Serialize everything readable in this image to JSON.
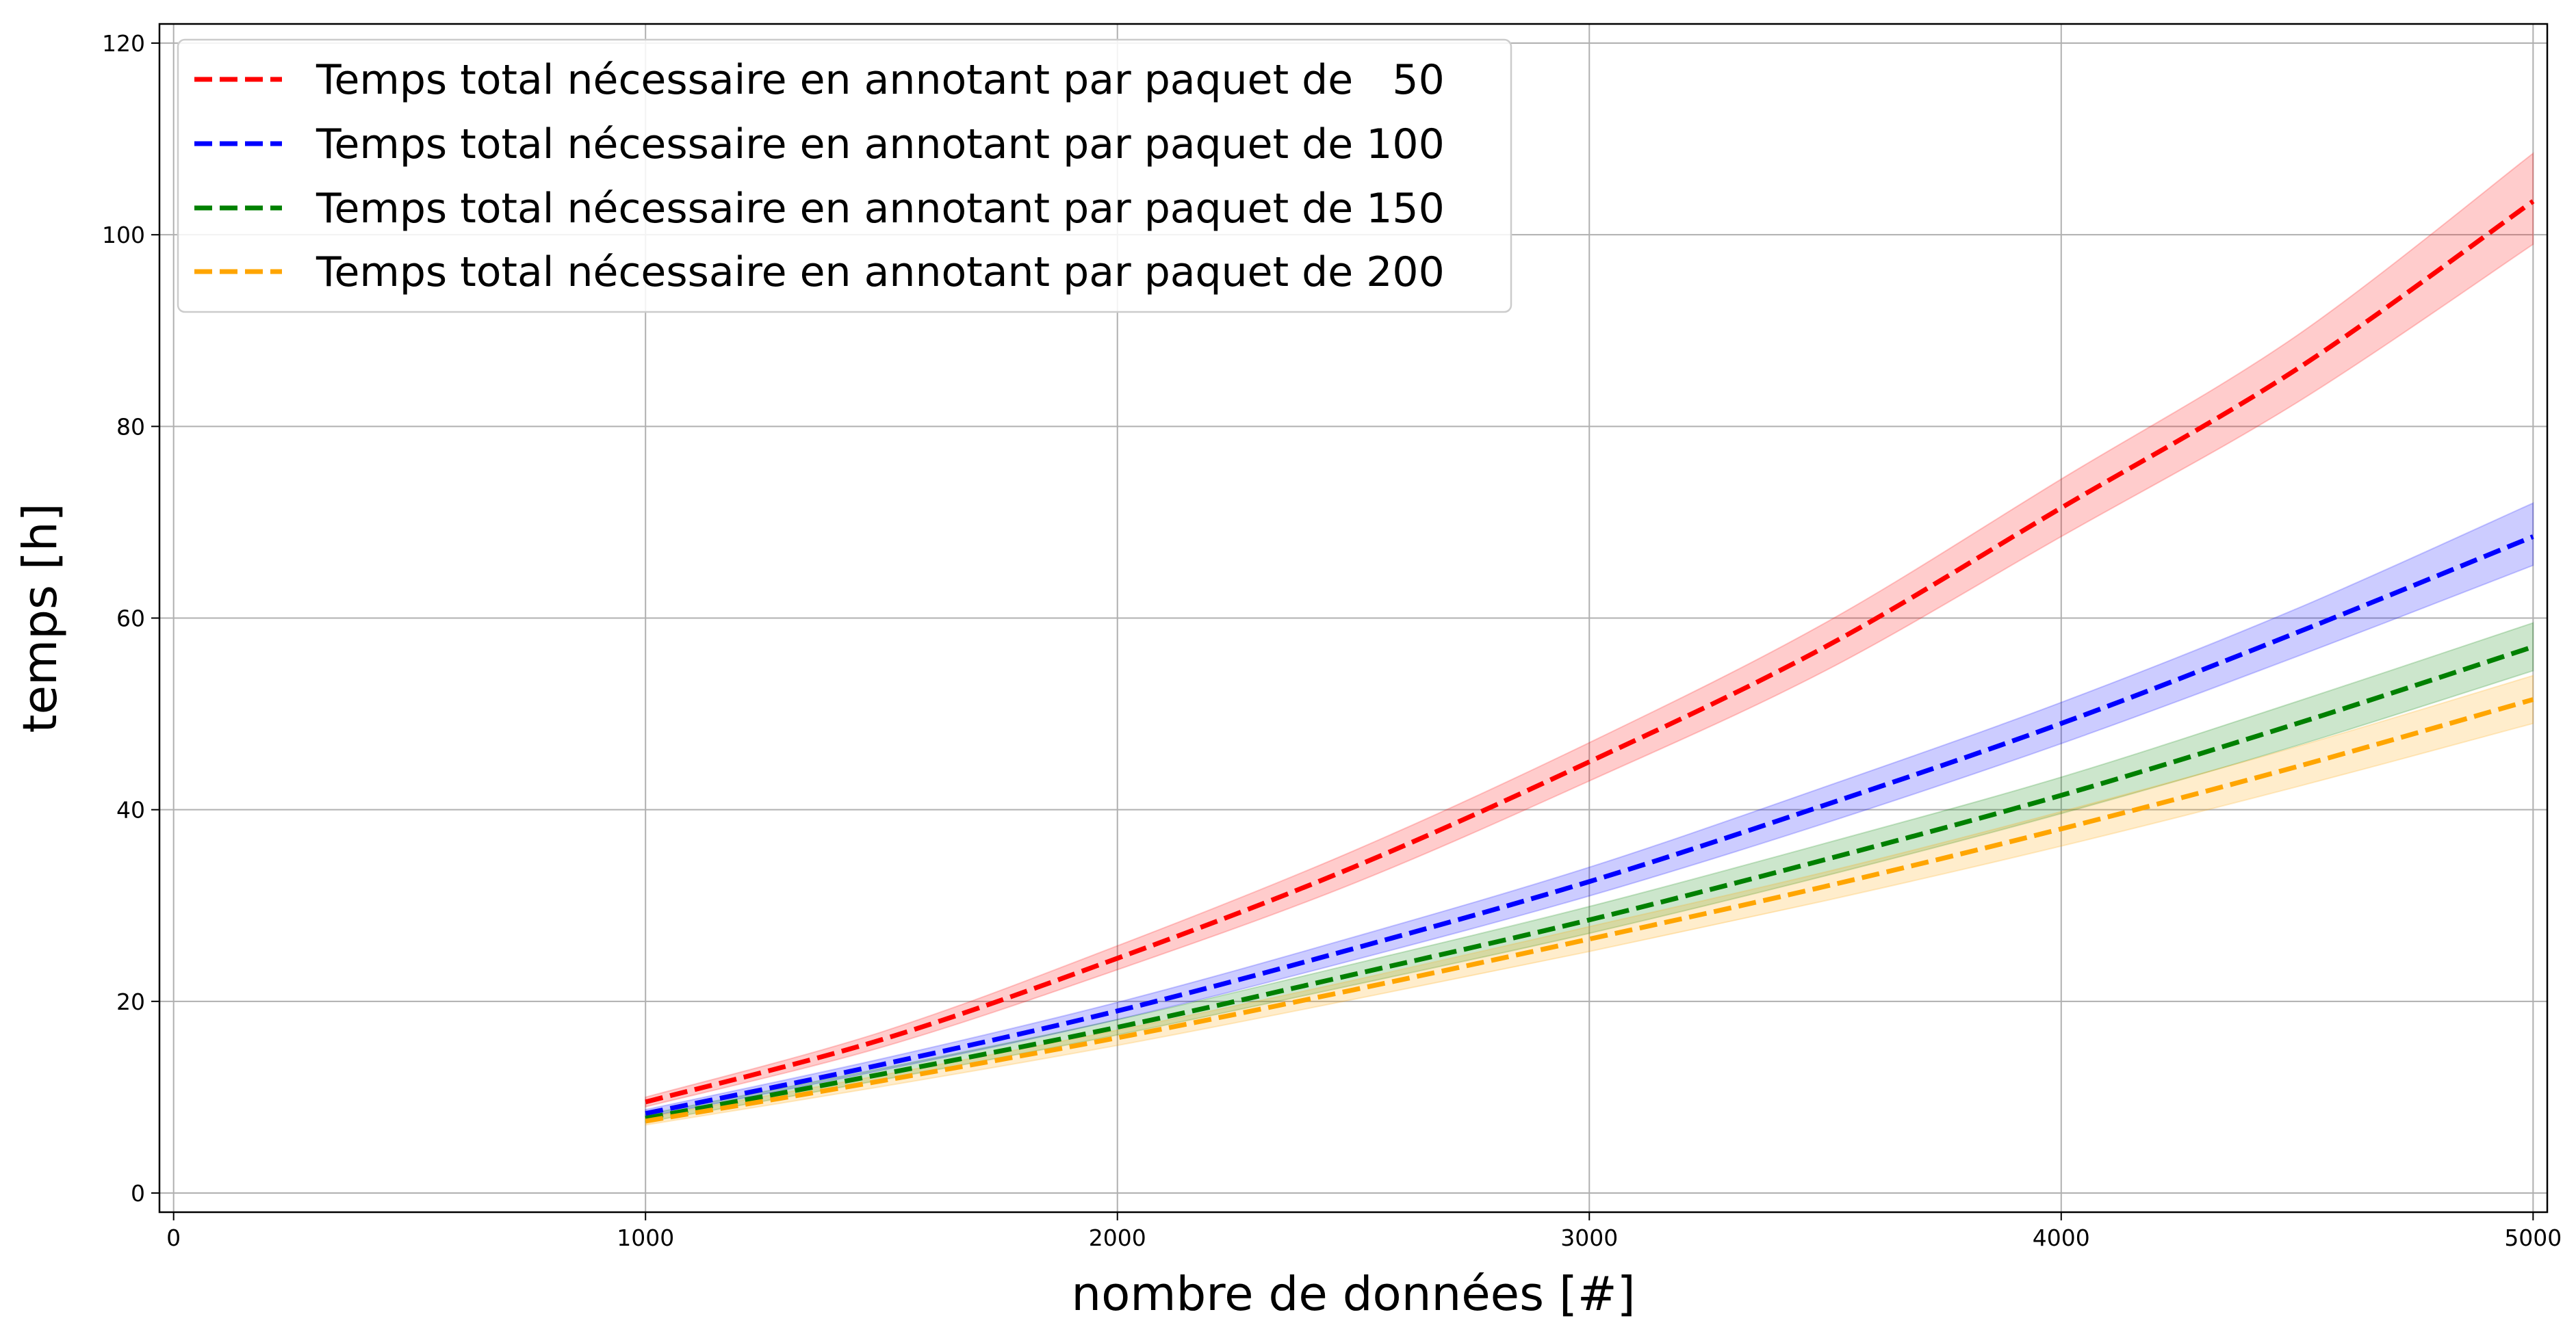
{
  "chart_data": {
    "type": "line",
    "title": "",
    "xlabel": "nombre de données [#]",
    "ylabel": "temps [h]",
    "xlim": [
      -30,
      5030
    ],
    "ylim": [
      -2,
      122
    ],
    "xticks": [
      0,
      1000,
      2000,
      3000,
      4000,
      5000
    ],
    "yticks": [
      0,
      20,
      40,
      60,
      80,
      100,
      120
    ],
    "grid": true,
    "legend_position": "top-left",
    "x": [
      1000,
      1500,
      2000,
      2500,
      3000,
      3500,
      4000,
      4500,
      5000
    ],
    "series": [
      {
        "name": "Temps total nécessaire en annotant par paquet de   50",
        "color": "#ff0000",
        "band_color": "#ff0000",
        "values": [
          9.5,
          16.0,
          24.5,
          34.0,
          45.0,
          57.0,
          71.5,
          86.0,
          103.5
        ],
        "lower": [
          9.0,
          15.2,
          23.3,
          32.3,
          43.0,
          54.5,
          68.5,
          82.5,
          99.0
        ],
        "upper": [
          10.0,
          16.8,
          25.8,
          35.7,
          47.0,
          59.5,
          74.5,
          89.5,
          108.5
        ]
      },
      {
        "name": "Temps total nécessaire en annotant par paquet de 100",
        "color": "#0000ff",
        "band_color": "#0000ff",
        "values": [
          8.3,
          13.4,
          19.0,
          25.5,
          32.5,
          40.5,
          49.0,
          58.5,
          68.5
        ],
        "lower": [
          7.9,
          12.8,
          18.1,
          24.3,
          31.0,
          38.6,
          46.9,
          56.0,
          65.5
        ],
        "upper": [
          8.7,
          14.0,
          19.9,
          26.7,
          34.0,
          42.4,
          51.2,
          61.0,
          72.0
        ]
      },
      {
        "name": "Temps total nécessaire en annotant par paquet de 150",
        "color": "#008000",
        "band_color": "#008000",
        "values": [
          7.8,
          12.4,
          17.3,
          22.8,
          28.5,
          34.8,
          41.5,
          49.0,
          57.0
        ],
        "lower": [
          7.4,
          11.8,
          16.5,
          21.7,
          27.1,
          33.1,
          39.6,
          46.7,
          54.5
        ],
        "upper": [
          8.2,
          13.0,
          18.1,
          23.9,
          29.9,
          36.5,
          43.4,
          51.3,
          59.5
        ]
      },
      {
        "name": "Temps total nécessaire en annotant par paquet de 200",
        "color": "#ffa500",
        "band_color": "#ffa500",
        "values": [
          7.5,
          11.7,
          16.2,
          21.2,
          26.5,
          32.0,
          38.0,
          44.5,
          51.5
        ],
        "lower": [
          7.1,
          11.1,
          15.4,
          20.2,
          25.2,
          30.5,
          36.2,
          42.4,
          49.0
        ],
        "upper": [
          7.9,
          12.3,
          17.0,
          22.2,
          27.8,
          33.5,
          39.8,
          46.6,
          54.0
        ]
      }
    ]
  }
}
